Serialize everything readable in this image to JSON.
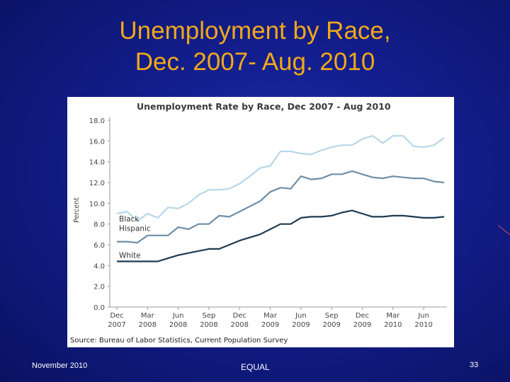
{
  "slide": {
    "title_line1": "Unemployment by Race,",
    "title_line2": "Dec. 2007- Aug. 2010",
    "footer_left": "November 2010",
    "footer_center": "EQUAL",
    "footer_right": "33"
  },
  "colors": {
    "background": "#141f8f",
    "title": "#f2a818",
    "black_series": "#b8d6e8",
    "hispanic_series": "#6f8ea6",
    "white_series": "#1e3b52"
  },
  "chart_data": {
    "type": "line",
    "title": "Unemployment Rate by Race, Dec 2007 - Aug 2010",
    "ylabel": "Percent",
    "xlabel": "",
    "ylim": [
      0,
      18
    ],
    "yticks": [
      "0.0",
      "2.0",
      "4.0",
      "6.0",
      "8.0",
      "10.0",
      "12.0",
      "14.0",
      "16.0",
      "18.0"
    ],
    "xticks": [
      {
        "line1": "Dec",
        "line2": "2007"
      },
      {
        "line1": "Mar",
        "line2": "2008"
      },
      {
        "line1": "Jun",
        "line2": "2008"
      },
      {
        "line1": "Sep",
        "line2": "2008"
      },
      {
        "line1": "Dec",
        "line2": "2008"
      },
      {
        "line1": "Mar",
        "line2": "2009"
      },
      {
        "line1": "Jun",
        "line2": "2009"
      },
      {
        "line1": "Sep",
        "line2": "2009"
      },
      {
        "line1": "Dec",
        "line2": "2009"
      },
      {
        "line1": "Mar",
        "line2": "2010"
      },
      {
        "line1": "Jun",
        "line2": "2010"
      }
    ],
    "x": [
      "Dec 2007",
      "Jan 2008",
      "Feb 2008",
      "Mar 2008",
      "Apr 2008",
      "May 2008",
      "Jun 2008",
      "Jul 2008",
      "Aug 2008",
      "Sep 2008",
      "Oct 2008",
      "Nov 2008",
      "Dec 2008",
      "Jan 2009",
      "Feb 2009",
      "Mar 2009",
      "Apr 2009",
      "May 2009",
      "Jun 2009",
      "Jul 2009",
      "Aug 2009",
      "Sep 2009",
      "Oct 2009",
      "Nov 2009",
      "Dec 2009",
      "Jan 2010",
      "Feb 2010",
      "Mar 2010",
      "Apr 2010",
      "May 2010",
      "Jun 2010",
      "Jul 2010",
      "Aug 2010"
    ],
    "series": [
      {
        "name": "Black",
        "color": "#b8d6e8",
        "values": [
          9.0,
          9.2,
          8.3,
          9.0,
          8.6,
          9.6,
          9.5,
          10.0,
          10.8,
          11.3,
          11.3,
          11.4,
          11.9,
          12.6,
          13.4,
          13.6,
          15.0,
          15.0,
          14.8,
          14.7,
          15.1,
          15.4,
          15.6,
          15.6,
          16.2,
          16.5,
          15.8,
          16.5,
          16.5,
          15.5,
          15.4,
          15.6,
          16.3
        ]
      },
      {
        "name": "Hispanic",
        "color": "#6f8ea6",
        "values": [
          6.3,
          6.3,
          6.2,
          6.9,
          6.9,
          6.9,
          7.7,
          7.5,
          8.0,
          8.0,
          8.8,
          8.7,
          9.2,
          9.7,
          10.2,
          11.1,
          11.5,
          11.4,
          12.6,
          12.3,
          12.4,
          12.8,
          12.8,
          13.1,
          12.8,
          12.5,
          12.4,
          12.6,
          12.5,
          12.4,
          12.4,
          12.1,
          12.0
        ]
      },
      {
        "name": "White",
        "color": "#1e3b52",
        "values": [
          4.4,
          4.4,
          4.4,
          4.4,
          4.4,
          4.7,
          5.0,
          5.2,
          5.4,
          5.6,
          5.6,
          6.0,
          6.4,
          6.7,
          7.0,
          7.5,
          8.0,
          8.0,
          8.6,
          8.7,
          8.7,
          8.8,
          9.1,
          9.3,
          9.0,
          8.7,
          8.7,
          8.8,
          8.8,
          8.7,
          8.6,
          8.6,
          8.7
        ]
      }
    ],
    "source": "Source: Bureau of Labor Statistics, Current Population Survey",
    "grid": false,
    "legend": "inline labels"
  }
}
